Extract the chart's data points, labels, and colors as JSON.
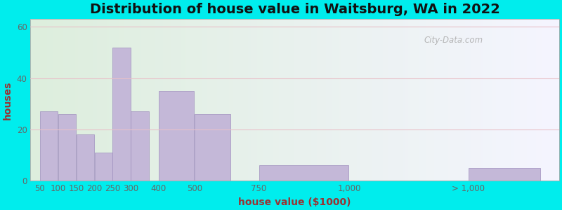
{
  "title": "Distribution of house value in Waitsburg, WA in 2022",
  "xlabel": "house value ($1000)",
  "ylabel": "houses",
  "bar_labels": [
    "50",
    "100",
    "150",
    "200",
    "250",
    "300",
    "400",
    "500",
    "750",
    "1,000",
    "> 1,000"
  ],
  "bar_values": [
    27,
    26,
    18,
    11,
    52,
    27,
    35,
    26,
    6,
    0,
    5
  ],
  "bar_color": "#c4b8d8",
  "bar_edgecolor": "#a090be",
  "background_outer": "#00eded",
  "background_inner_green": "#ddeedd",
  "background_inner_white": "#f5f5ff",
  "grid_color": "#e8c0c8",
  "yticks": [
    0,
    20,
    40,
    60
  ],
  "ylim": [
    0,
    63
  ],
  "title_fontsize": 14,
  "axis_label_fontsize": 10,
  "tick_fontsize": 8.5,
  "watermark_text": "City-Data.com",
  "bar_positions": [
    1,
    2,
    3,
    4,
    5,
    6,
    8,
    10,
    15,
    20,
    26
  ],
  "bar_widths": [
    1,
    1,
    1,
    1,
    1,
    1,
    2,
    2,
    5,
    5,
    4
  ],
  "xlim": [
    0,
    29
  ],
  "xtick_positions": [
    0.5,
    1.5,
    2.5,
    3.5,
    4.5,
    5.5,
    7,
    9,
    12.5,
    17.5,
    24
  ],
  "xlabel_color": "#993333",
  "ylabel_color": "#993333"
}
